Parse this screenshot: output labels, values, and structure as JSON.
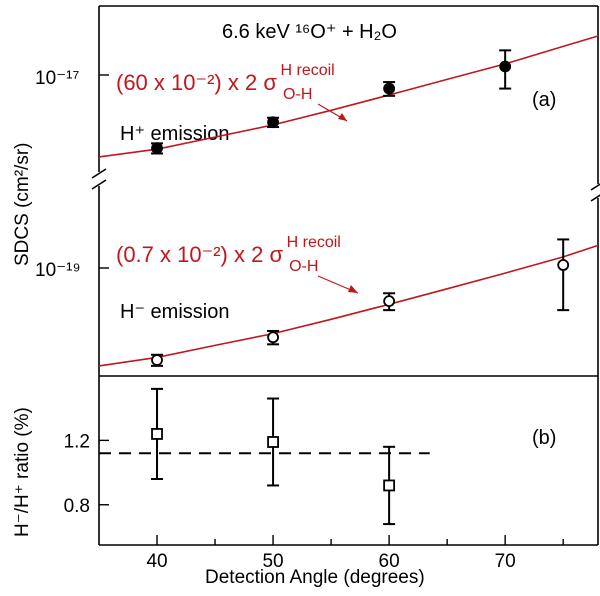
{
  "title": "6.6 keV ¹⁶O⁺ + H₂O",
  "x_axis": {
    "label": "Detection Angle (degrees)",
    "range": [
      35,
      78
    ],
    "ticks": [
      40,
      50,
      60,
      70
    ],
    "tick_labels": [
      "40",
      "50",
      "60",
      "70"
    ]
  },
  "panel_a": {
    "label": "(a)",
    "ylabel": "SDCS (cm²/sr)",
    "y_tick_labels": {
      "upper": "10⁻¹⁷",
      "lower": "10⁻¹⁹"
    },
    "h_plus_label": "H⁺ emission",
    "h_minus_label": "H⁻ emission",
    "fit_upper_label": "(60 x 10⁻²) x 2 σ",
    "fit_upper_sup": "H recoil",
    "fit_upper_sub": "O-H",
    "fit_lower_label": "(0.7 x 10⁻²) x 2 σ",
    "fit_lower_sup": "H recoil",
    "fit_lower_sub": "O-H"
  },
  "panel_b": {
    "label": "(b)",
    "ylabel": "H⁻/H⁺ ratio (%)",
    "y_ticks": [
      0.8,
      1.2
    ],
    "y_tick_labels": [
      "0.8",
      "1.2"
    ],
    "ylim": [
      0.55,
      1.6
    ],
    "mean_ratio": 1.12
  },
  "colors": {
    "fit": "#c0171c",
    "axis": "#000000"
  },
  "chart_data": [
    {
      "type": "scatter",
      "panel": "(a)",
      "title": "6.6 keV ¹⁶O⁺ + H₂O",
      "xlabel": "Detection Angle (degrees)",
      "ylabel": "SDCS (cm²/sr)",
      "y_scale": "log, broken axis",
      "series": [
        {
          "name": "H⁺ emission",
          "marker": "filled circle",
          "x": [
            40,
            50,
            60,
            70
          ],
          "y": [
            3e-18,
            4.6e-18,
            8e-18,
            1.15e-17
          ],
          "y_err": [
            2.5e-19,
            3.5e-19,
            9e-19,
            3.5e-18
          ]
        },
        {
          "name": "H⁻ emission",
          "marker": "open circle",
          "x": [
            40,
            50,
            60,
            75
          ],
          "y": [
            2.2e-20,
            3.2e-20,
            5.8e-20,
            1.05e-19
          ],
          "y_err": [
            2e-21,
            3.5e-21,
            8e-21,
            5.5e-20
          ]
        },
        {
          "name": "(60 x 10⁻²) x 2 σ O-H H recoil",
          "type": "line",
          "x": [
            35,
            40,
            45,
            50,
            55,
            60,
            65,
            70,
            75,
            78
          ],
          "y": [
            2.6e-18,
            2.95e-18,
            3.6e-18,
            4.4e-18,
            5.6e-18,
            7.2e-18,
            9.3e-18,
            1.2e-17,
            1.6e-17,
            1.9e-17
          ]
        },
        {
          "name": "(0.7 x 10⁻²) x 2 σ O-H H recoil",
          "type": "line",
          "x": [
            35,
            40,
            45,
            50,
            55,
            60,
            65,
            70,
            75,
            78
          ],
          "y": [
            2e-20,
            2.3e-20,
            2.8e-20,
            3.4e-20,
            4.3e-20,
            5.5e-20,
            7.1e-20,
            9.2e-20,
            1.2e-19,
            1.45e-19
          ]
        }
      ]
    },
    {
      "type": "scatter",
      "panel": "(b)",
      "xlabel": "Detection Angle (degrees)",
      "ylabel": "H⁻/H⁺ ratio (%)",
      "ylim": [
        0.55,
        1.6
      ],
      "series": [
        {
          "marker": "open square",
          "x": [
            40,
            50,
            60
          ],
          "y": [
            1.24,
            1.19,
            0.92
          ],
          "y_err": [
            0.28,
            0.27,
            0.24
          ]
        }
      ],
      "reference_line": {
        "style": "dashed",
        "y": 1.12,
        "x_range": [
          35,
          63.5
        ]
      }
    }
  ]
}
